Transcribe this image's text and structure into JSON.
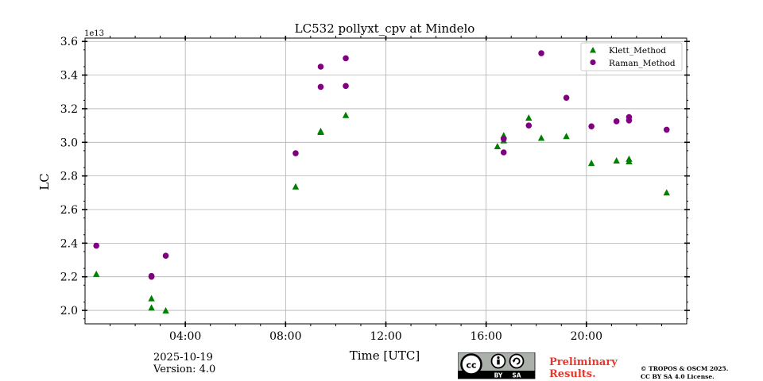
{
  "chart_data": {
    "type": "scatter",
    "title": "LC532 pollyxt_cpv at Mindelo",
    "xlabel": "Time [UTC]",
    "ylabel": "LC",
    "y_scale_label": "1e13",
    "y_multiplier": 10000000000000.0,
    "xlim": [
      0,
      24
    ],
    "ylim": [
      1.92,
      3.62
    ],
    "x_ticks": [
      4,
      8,
      12,
      16,
      20
    ],
    "x_tick_labels": [
      "04:00",
      "08:00",
      "12:00",
      "16:00",
      "20:00"
    ],
    "y_ticks": [
      2.0,
      2.2,
      2.4,
      2.6,
      2.8,
      3.0,
      3.2,
      3.4,
      3.6
    ],
    "y_tick_labels": [
      "2.0",
      "2.2",
      "2.4",
      "2.6",
      "2.8",
      "3.0",
      "3.2",
      "3.4",
      "3.6"
    ],
    "grid": true,
    "legend_position": "top-right",
    "series": [
      {
        "name": "Klett_Method",
        "marker": "triangle",
        "color": "#008000",
        "points": [
          [
            0.45,
            2.215
          ],
          [
            2.65,
            2.07
          ],
          [
            2.65,
            2.015
          ],
          [
            3.22,
            1.998
          ],
          [
            8.4,
            2.735
          ],
          [
            9.4,
            3.065
          ],
          [
            9.4,
            3.06
          ],
          [
            10.4,
            3.16
          ],
          [
            16.45,
            2.975
          ],
          [
            16.7,
            3.04
          ],
          [
            16.7,
            3.01
          ],
          [
            17.7,
            3.145
          ],
          [
            18.2,
            3.025
          ],
          [
            19.2,
            3.035
          ],
          [
            20.2,
            2.875
          ],
          [
            21.2,
            2.89
          ],
          [
            21.7,
            2.9
          ],
          [
            21.7,
            2.885
          ],
          [
            23.2,
            2.7
          ]
        ]
      },
      {
        "name": "Raman_Method",
        "marker": "circle",
        "color": "#800080",
        "points": [
          [
            0.45,
            2.385
          ],
          [
            2.65,
            2.205
          ],
          [
            2.65,
            2.2
          ],
          [
            3.22,
            2.325
          ],
          [
            8.4,
            2.935
          ],
          [
            9.4,
            3.45
          ],
          [
            9.4,
            3.33
          ],
          [
            10.4,
            3.5
          ],
          [
            10.4,
            3.335
          ],
          [
            16.7,
            3.02
          ],
          [
            16.7,
            2.94
          ],
          [
            17.7,
            3.1
          ],
          [
            18.2,
            3.53
          ],
          [
            19.2,
            3.265
          ],
          [
            20.2,
            3.095
          ],
          [
            21.2,
            3.125
          ],
          [
            21.7,
            3.15
          ],
          [
            21.7,
            3.13
          ],
          [
            23.2,
            3.075
          ]
        ]
      }
    ]
  },
  "footer": {
    "date": "2025-10-19",
    "version": "Version: 4.0",
    "license_badge": {
      "cc": "cc",
      "by": "BY",
      "sa": "SA"
    },
    "preliminary_line1": "Preliminary",
    "preliminary_line2": "Results.",
    "copyright_line1": "© TROPOS & OSCM 2025.",
    "copyright_line2": "CC BY SA 4.0 License."
  }
}
